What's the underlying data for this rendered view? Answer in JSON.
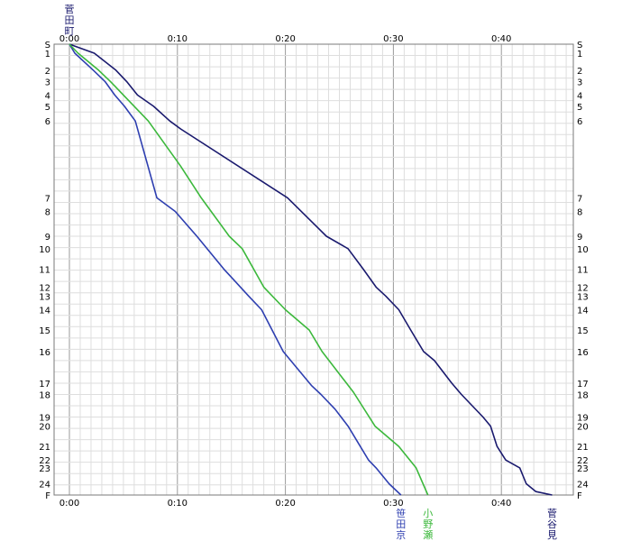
{
  "chart_data": {
    "type": "line",
    "x_unit": "minutes",
    "xlim": [
      0,
      47
    ],
    "x_ticks": [
      {
        "value": 0,
        "label": "0:00"
      },
      {
        "value": 10,
        "label": "0:10"
      },
      {
        "value": 20,
        "label": "0:20"
      },
      {
        "value": 30,
        "label": "0:30"
      },
      {
        "value": 40,
        "label": "0:40"
      }
    ],
    "stations": [
      {
        "label": "S",
        "km": 0
      },
      {
        "label": "1",
        "km": 0.8
      },
      {
        "label": "2",
        "km": 2.3
      },
      {
        "label": "3",
        "km": 3.3
      },
      {
        "label": "4",
        "km": 4.5
      },
      {
        "label": "5",
        "km": 5.5
      },
      {
        "label": "6",
        "km": 6.8
      },
      {
        "label": "7",
        "km": 13.6
      },
      {
        "label": "8",
        "km": 14.8
      },
      {
        "label": "9",
        "km": 17.0
      },
      {
        "label": "10",
        "km": 18.1
      },
      {
        "label": "11",
        "km": 19.9
      },
      {
        "label": "12",
        "km": 21.5
      },
      {
        "label": "13",
        "km": 22.3
      },
      {
        "label": "14",
        "km": 23.5
      },
      {
        "label": "15",
        "km": 25.3
      },
      {
        "label": "16",
        "km": 27.2
      },
      {
        "label": "17",
        "km": 30.0
      },
      {
        "label": "18",
        "km": 31.0
      },
      {
        "label": "19",
        "km": 33.0
      },
      {
        "label": "20",
        "km": 33.8
      },
      {
        "label": "21",
        "km": 35.6
      },
      {
        "label": "22",
        "km": 36.8
      },
      {
        "label": "23",
        "km": 37.5
      },
      {
        "label": "24",
        "km": 38.9
      },
      {
        "label": "F",
        "km": 39.9
      }
    ],
    "top_label": "菅田町",
    "grid": true,
    "series": [
      {
        "name": "菅谷見",
        "color": "#1a1a6e",
        "x": [
          0,
          2.3,
          4.3,
          5.3,
          6.3,
          7.8,
          9.3,
          10.3,
          20.2,
          23.8,
          25.8,
          27.2,
          28.4,
          29.3,
          30.5,
          31.6,
          32.8,
          33.8,
          35.4,
          36.3,
          38.3,
          39.0,
          39.6,
          40.4,
          41.7,
          42.3,
          43.2,
          44.7
        ],
        "y": [
          0,
          0.8,
          2.3,
          3.3,
          4.5,
          5.5,
          6.8,
          7.5,
          13.6,
          17.0,
          18.1,
          19.9,
          21.5,
          22.3,
          23.5,
          25.3,
          27.2,
          28.0,
          30.0,
          31.0,
          33.0,
          33.8,
          35.6,
          36.8,
          37.5,
          38.9,
          39.6,
          39.9
        ]
      },
      {
        "name": "笹田京",
        "color": "#2e3fb0",
        "x": [
          0,
          0.5,
          2.2,
          3.3,
          4.2,
          5.1,
          6.1,
          8.1,
          9.8,
          11.8,
          14.3,
          16.6,
          17.8,
          19.8,
          22.4,
          23.3,
          24.6,
          25.8,
          27.7,
          28.4,
          29.6,
          30.7
        ],
        "y": [
          0,
          0.8,
          2.3,
          3.3,
          4.5,
          5.5,
          6.8,
          13.6,
          14.8,
          17.0,
          19.9,
          22.3,
          23.5,
          27.2,
          30.2,
          31.0,
          32.3,
          33.8,
          36.8,
          37.5,
          38.9,
          39.9
        ]
      },
      {
        "name": "小野瀬",
        "color": "#3cb83c",
        "x": [
          0,
          0.8,
          2.7,
          3.8,
          5.0,
          6.0,
          7.3,
          10.3,
          12.2,
          14.8,
          16.0,
          18.0,
          20.0,
          22.2,
          23.4,
          26.3,
          28.3,
          30.5,
          32.1,
          33.2
        ],
        "y": [
          0,
          0.8,
          2.3,
          3.3,
          4.5,
          5.5,
          6.8,
          10.8,
          13.6,
          17.0,
          18.1,
          21.5,
          23.5,
          25.3,
          27.2,
          30.8,
          33.8,
          35.6,
          37.5,
          39.9
        ]
      }
    ]
  }
}
